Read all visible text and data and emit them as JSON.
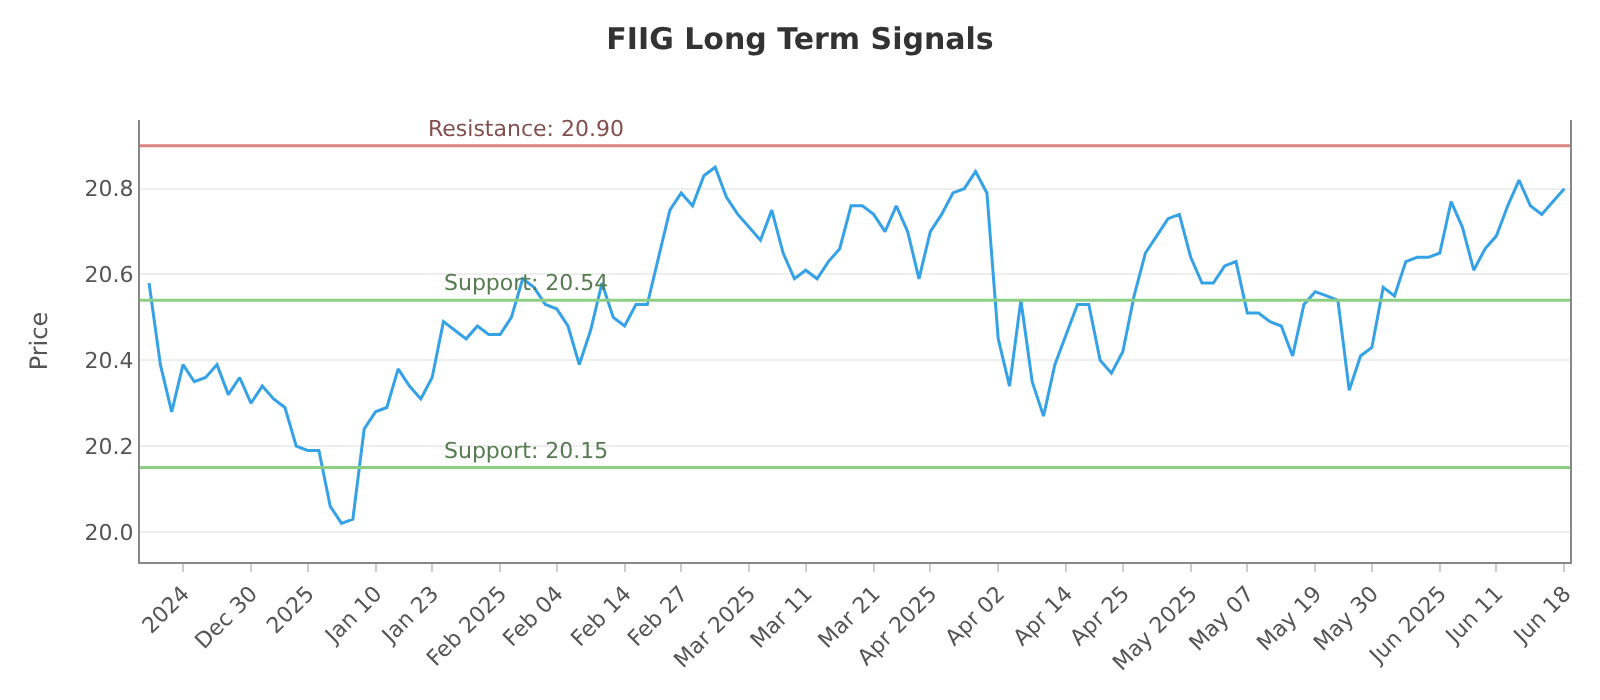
{
  "chart_data": {
    "type": "line",
    "title": "FIIG Long Term Signals",
    "ylabel": "Price",
    "categories": [
      null,
      null,
      null,
      "2024",
      null,
      null,
      null,
      null,
      null,
      "Dec 30",
      null,
      null,
      null,
      null,
      "2025",
      null,
      null,
      null,
      null,
      null,
      "Jan 10",
      null,
      null,
      null,
      null,
      "Jan 23",
      null,
      null,
      null,
      null,
      null,
      "Feb 2025",
      null,
      null,
      null,
      null,
      "Feb 04",
      null,
      null,
      null,
      null,
      null,
      "Feb 14",
      null,
      null,
      null,
      null,
      "Feb 27",
      null,
      null,
      null,
      null,
      null,
      "Mar 2025",
      null,
      null,
      null,
      null,
      "Mar 11",
      null,
      null,
      null,
      null,
      null,
      "Mar 21",
      null,
      null,
      null,
      null,
      "Apr 2025",
      null,
      null,
      null,
      null,
      null,
      "Apr 02",
      null,
      null,
      null,
      null,
      null,
      "Apr 14",
      null,
      null,
      null,
      null,
      "Apr 25",
      null,
      null,
      null,
      null,
      null,
      "May 2025",
      null,
      null,
      null,
      null,
      "May 07",
      null,
      null,
      null,
      null,
      null,
      "May 19",
      null,
      null,
      null,
      null,
      "May 30",
      null,
      null,
      null,
      null,
      null,
      "Jun 2025",
      null,
      null,
      null,
      null,
      "Jun 11",
      null,
      null,
      null,
      null,
      null,
      "Jun 18"
    ],
    "series": [
      {
        "color": "#35a2e6",
        "values": [
          20.58,
          20.39,
          20.28,
          20.39,
          20.35,
          20.36,
          20.39,
          20.32,
          20.36,
          20.3,
          20.34,
          20.31,
          20.29,
          20.2,
          20.19,
          20.19,
          20.06,
          20.02,
          20.03,
          20.24,
          20.28,
          20.29,
          20.38,
          20.34,
          20.31,
          20.36,
          20.49,
          20.47,
          20.45,
          20.48,
          20.46,
          20.46,
          20.5,
          20.59,
          20.57,
          20.53,
          20.52,
          20.48,
          20.39,
          20.47,
          20.58,
          20.5,
          20.48,
          20.53,
          20.53,
          20.64,
          20.75,
          20.79,
          20.76,
          20.83,
          20.85,
          20.78,
          20.74,
          20.71,
          20.68,
          20.75,
          20.65,
          20.59,
          20.61,
          20.59,
          20.63,
          20.66,
          20.76,
          20.76,
          20.74,
          20.7,
          20.76,
          20.7,
          20.59,
          20.7,
          20.74,
          20.79,
          20.8,
          20.84,
          20.79,
          20.45,
          20.34,
          20.54,
          20.35,
          20.27,
          20.39,
          20.46,
          20.53,
          20.53,
          20.4,
          20.37,
          20.42,
          20.55,
          20.65,
          20.69,
          20.73,
          20.74,
          20.64,
          20.58,
          20.58,
          20.62,
          20.63,
          20.51,
          20.51,
          20.49,
          20.48,
          20.41,
          20.53,
          20.56,
          20.55,
          20.54,
          20.33,
          20.41,
          20.43,
          20.57,
          20.55,
          20.63,
          20.64,
          20.64,
          20.65,
          20.77,
          20.71,
          20.61,
          20.66,
          20.69,
          20.76,
          20.82,
          20.76,
          20.74,
          20.77,
          20.8
        ]
      }
    ],
    "ylim": [
      19.93,
      20.96
    ],
    "yticks": [
      {
        "value": 20.0,
        "label": "20.0"
      },
      {
        "value": 20.2,
        "label": "20.2"
      },
      {
        "value": 20.4,
        "label": "20.4"
      },
      {
        "value": 20.6,
        "label": "20.6"
      },
      {
        "value": 20.8,
        "label": "20.8"
      }
    ],
    "grid": "y",
    "marker": "none",
    "line_style": "solid",
    "ref_lines": [
      {
        "axis": "y",
        "value": 20.9,
        "label": "Resistance: 20.90",
        "color": "#d98580"
      },
      {
        "axis": "y",
        "value": 20.54,
        "label": "Support: 20.54",
        "color": "#8ccf84"
      },
      {
        "axis": "y",
        "value": 20.15,
        "label": "Support: 20.15",
        "color": "#8ccf84"
      }
    ]
  }
}
